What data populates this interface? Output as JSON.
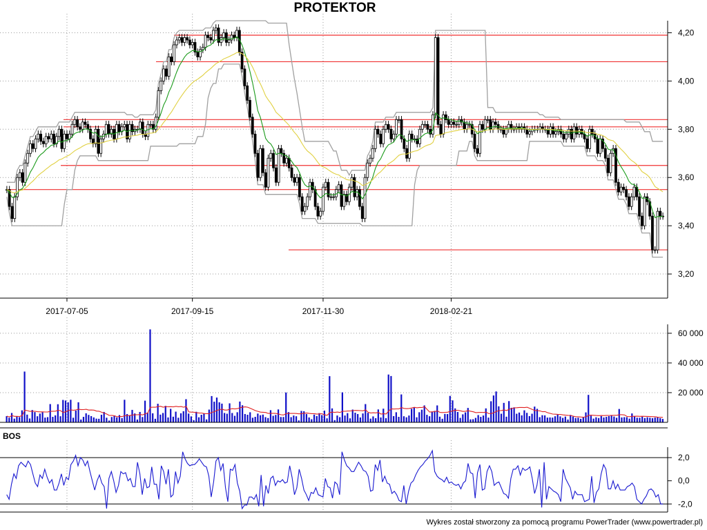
{
  "title": "PROTEKTOR",
  "footer": "Wykres został stworzony za pomocą programu PowerTrader (www.powertrader.pl)",
  "chart_data": [
    {
      "type": "candlestick",
      "name": "price",
      "x_ticks": [
        "2017-07-05",
        "2017-09-15",
        "2017-11-30",
        "2018-02-21"
      ],
      "y_ticks": [
        "4,20",
        "4,00",
        "3,80",
        "3,60",
        "3,40",
        "3,20"
      ],
      "ylim": [
        3.1,
        4.25
      ],
      "grid": true,
      "horizontal_levels": [
        4.19,
        4.08,
        3.84,
        3.81,
        3.65,
        3.55,
        3.3
      ],
      "close": [
        3.55,
        3.48,
        3.43,
        3.52,
        3.6,
        3.62,
        3.58,
        3.66,
        3.7,
        3.74,
        3.72,
        3.76,
        3.78,
        3.75,
        3.74,
        3.77,
        3.76,
        3.78,
        3.74,
        3.77,
        3.8,
        3.72,
        3.78,
        3.76,
        3.78,
        3.82,
        3.84,
        3.81,
        3.8,
        3.83,
        3.82,
        3.8,
        3.76,
        3.74,
        3.8,
        3.7,
        3.76,
        3.78,
        3.82,
        3.78,
        3.8,
        3.76,
        3.82,
        3.79,
        3.81,
        3.82,
        3.76,
        3.82,
        3.79,
        3.8,
        3.8,
        3.83,
        3.78,
        3.77,
        3.82,
        3.82,
        3.8,
        3.85,
        3.96,
        4.0,
        4.05,
        4.02,
        4.1,
        4.08,
        4.15,
        4.17,
        4.18,
        4.16,
        4.18,
        4.17,
        4.15,
        4.16,
        4.12,
        4.1,
        4.13,
        4.14,
        4.19,
        4.18,
        4.17,
        4.21,
        4.22,
        4.16,
        4.18,
        4.2,
        4.16,
        4.17,
        4.19,
        4.18,
        4.21,
        4.12,
        4.05,
        3.98,
        3.92,
        3.85,
        3.78,
        3.7,
        3.6,
        3.72,
        3.62,
        3.56,
        3.68,
        3.7,
        3.64,
        3.58,
        3.72,
        3.7,
        3.66,
        3.68,
        3.64,
        3.6,
        3.58,
        3.6,
        3.52,
        3.46,
        3.48,
        3.52,
        3.58,
        3.55,
        3.48,
        3.44,
        3.46,
        3.56,
        3.58,
        3.52,
        3.52,
        3.52,
        3.55,
        3.57,
        3.48,
        3.53,
        3.5,
        3.56,
        3.6,
        3.52,
        3.55,
        3.48,
        3.43,
        3.6,
        3.66,
        3.68,
        3.72,
        3.8,
        3.78,
        3.74,
        3.8,
        3.82,
        3.8,
        3.76,
        3.78,
        3.84,
        3.84,
        3.76,
        3.72,
        3.68,
        3.78,
        3.76,
        3.76,
        3.74,
        3.8,
        3.82,
        3.82,
        3.8,
        3.78,
        3.86,
        4.18,
        3.82,
        3.78,
        3.86,
        3.84,
        3.82,
        3.83,
        3.82,
        3.82,
        3.84,
        3.83,
        3.8,
        3.82,
        3.82,
        3.78,
        3.72,
        3.7,
        3.82,
        3.8,
        3.84,
        3.84,
        3.8,
        3.83,
        3.82,
        3.8,
        3.8,
        3.78,
        3.8,
        3.82,
        3.8,
        3.8,
        3.81,
        3.8,
        3.81,
        3.8,
        3.78,
        3.79,
        3.8,
        3.8,
        3.8,
        3.81,
        3.8,
        3.8,
        3.78,
        3.81,
        3.78,
        3.79,
        3.8,
        3.78,
        3.76,
        3.78,
        3.8,
        3.76,
        3.81,
        3.78,
        3.8,
        3.78,
        3.76,
        3.72,
        3.8,
        3.78,
        3.76,
        3.7,
        3.76,
        3.72,
        3.68,
        3.62,
        3.7,
        3.72,
        3.58,
        3.54,
        3.56,
        3.55,
        3.52,
        3.48,
        3.52,
        3.56,
        3.52,
        3.44,
        3.4,
        3.52,
        3.5,
        3.44,
        3.3,
        3.3,
        3.46,
        3.44,
        3.44
      ]
    },
    {
      "type": "bar",
      "name": "volume",
      "y_ticks": [
        "60 000",
        "40 000",
        "20 000"
      ],
      "ylim": [
        0,
        66000
      ],
      "values": [
        4200,
        3100,
        6300,
        2500,
        4100,
        3500,
        8100,
        34200,
        5200,
        2600,
        8300,
        6900,
        4100,
        5900,
        6800,
        3200,
        3500,
        12300,
        3700,
        4700,
        12200,
        4100,
        15100,
        14700,
        13500,
        15200,
        3100,
        7900,
        13500,
        1900,
        3700,
        6100,
        5000,
        4200,
        3300,
        2500,
        2400,
        5100,
        7000,
        3100,
        1200,
        3600,
        4200,
        3300,
        4900,
        2900,
        15200,
        5600,
        4600,
        8400,
        6000,
        1900,
        7000,
        3600,
        14600,
        6600,
        62600,
        6100,
        2400,
        12500,
        5200,
        6300,
        11100,
        3300,
        9100,
        3800,
        7200,
        3100,
        6100,
        7500,
        15600,
        5900,
        4000,
        1500,
        7100,
        3400,
        5100,
        6100,
        2000,
        8600,
        17700,
        13900,
        16700,
        13500,
        12600,
        6300,
        5800,
        12800,
        6300,
        4400,
        6800,
        14000,
        11500,
        5600,
        5100,
        6800,
        3100,
        3700,
        5900,
        4800,
        5200,
        3500,
        2900,
        8200,
        4400,
        5000,
        8700,
        3600,
        3600,
        20100,
        6900,
        3500,
        4600,
        4100,
        1300,
        7700,
        7500,
        5600,
        3300,
        2100,
        5200,
        4200,
        6200,
        4900,
        7900,
        2700,
        31100,
        9400,
        1500,
        4600,
        3500,
        20200,
        4600,
        6200,
        2700,
        8600,
        6500,
        5600,
        3300,
        6000,
        12300,
        6400,
        2500,
        4000,
        2800,
        8700,
        3300,
        9200,
        2800,
        32200,
        31200,
        4200,
        6800,
        3700,
        18800,
        4100,
        3400,
        4600,
        9100,
        10100,
        3400,
        6800,
        8500,
        11400,
        5100,
        4100,
        7100,
        7700,
        11400,
        3800,
        2400,
        5700,
        5600,
        17800,
        14800,
        9400,
        7000,
        3000,
        5400,
        6700,
        9700,
        2000,
        2100,
        3000,
        4900,
        3700,
        4600,
        9400,
        3200,
        14200,
        18100,
        20800,
        10800,
        5800,
        13100,
        3800,
        14300,
        9800,
        10100,
        5800,
        6600,
        4700,
        8100,
        6400,
        4200,
        5800,
        10600,
        9100,
        3500,
        4800,
        4700,
        3200,
        3300,
        3200,
        4100,
        5200,
        4000,
        3000,
        3900,
        1900,
        5000,
        3900,
        2900,
        3100,
        2400,
        3300,
        6700,
        18500,
        4500,
        2500,
        3400,
        2900,
        4200,
        3300,
        3700,
        4200,
        4500,
        3900,
        3100,
        9000,
        3300,
        3500,
        3500,
        2500,
        6000,
        4100,
        3100,
        3100,
        3800,
        2900,
        3400,
        3100,
        2800,
        3200,
        3400,
        2800,
        2300
      ]
    },
    {
      "type": "line",
      "name": "BOS",
      "title": "BOS",
      "y_ticks": [
        "2,0",
        "0,0",
        "-2,0"
      ],
      "ylim": [
        -2.7,
        2.9
      ],
      "levels": [
        2.0,
        -2.0
      ],
      "values": [
        -1.2,
        -1.6,
        -0.3,
        0.6,
        0.2,
        1.3,
        1.6,
        1.4,
        1.2,
        1.7,
        1.4,
        0.6,
        -0.2,
        -0.5,
        0.5,
        0.2,
        1.0,
        0.3,
        -0.2,
        0.1,
        -0.8,
        -0.8,
        -0.2,
        0.6,
        -0.4,
        0.3,
        0.1,
        1.4,
        1.7,
        2.2,
        1.3,
        2.0,
        1.8,
        1.3,
        1.7,
        0.8,
        0.0,
        -0.8,
        0.0,
        0.5,
        -0.2,
        -0.5,
        -2.4,
        0.2,
        0.8,
        0.0,
        -1.0,
        -0.4,
        0.8,
        0.6,
        0.7,
        0.0,
        0.2,
        -0.5,
        -0.5,
        1.6,
        0.6,
        -1.2,
        0.2,
        -0.6,
        -0.5,
        1.2,
        -0.3,
        -0.3,
        -1.6,
        1.3,
        0.8,
        -0.3,
        1.0,
        -1.4,
        -1.2,
        0.8,
        -0.2,
        0.4,
        2.5,
        1.9,
        1.5,
        1.3,
        1.4,
        1.4,
        1.6,
        1.9,
        1.6,
        1.3,
        1.2,
        0.4,
        -1.4,
        -0.1,
        1.7,
        2.0,
        0.9,
        1.5,
        -0.6,
        -1.8,
        1.0,
        0.9,
        1.4,
        -0.2,
        -0.9,
        -2.4,
        -2.1,
        -2.1,
        -1.4,
        -1.4,
        -1.6,
        -1.2,
        -2.2,
        0.5,
        -2.2,
        -0.4,
        -1.1,
        0.2,
        0.4,
        -0.4,
        0.0,
        -0.1,
        0.1,
        -0.2,
        -0.1,
        1.3,
        0.3,
        -1.2,
        -0.6,
        1.0,
        0.2,
        -0.8,
        -1.2,
        -1.7,
        -1.0,
        -1.1,
        -0.6,
        -1.2,
        -1.3,
        -1.4,
        0.2,
        -0.5,
        -0.6,
        -1.5,
        -0.1,
        -0.3,
        -1.2,
        2.5,
        1.8,
        1.3,
        1.1,
        0.8,
        0.8,
        1.2,
        1.6,
        1.3,
        0.9,
        0.8,
        0.4,
        -0.9,
        -0.8,
        1.4,
        0.9,
        1.8,
        -0.1,
        0.4,
        -0.2,
        -0.3,
        -1.1,
        -0.9,
        -1.2,
        -1.7,
        -1.8,
        -0.4,
        -2.0,
        -0.9,
        -0.2,
        0.0,
        0.5,
        0.9,
        1.2,
        1.4,
        1.7,
        1.9,
        2.2,
        2.6,
        0.8,
        0.4,
        0.2,
        0.1,
        -0.1,
        0.3,
        -0.2,
        -0.1,
        -0.3,
        -0.4,
        -0.3,
        -0.7,
        -0.2,
        0.0,
        1.5,
        0.7,
        0.6,
        -1.5,
        0.7,
        1.4,
        -0.8,
        -0.7,
        0.8,
        1.3,
        0.8,
        -0.4,
        -0.2,
        -0.1,
        -0.6,
        -1.1,
        -1.2,
        -1.5,
        0.2,
        1.0,
        1.0,
        1.3,
        0.5,
        1.1,
        0.9,
        1.0,
        1.2,
        0.2,
        -1.1,
        -0.4,
        1.0,
        -2.3,
        1.6,
        -1.6,
        -0.5,
        -0.7,
        -0.9,
        -1.0,
        -1.2,
        -1.8,
        1.0,
        0.2,
        -0.2,
        -0.6,
        -1.6,
        -0.9,
        -1.2,
        -1.2,
        -1.2,
        -1.8,
        -1.7,
        -1.6,
        0.4,
        -1.9,
        -1.0,
        -0.7,
        0.6,
        1.4,
        1.0,
        -0.7,
        -0.7,
        0.0,
        -0.7,
        -0.3,
        -0.8,
        -0.8,
        -0.8,
        -0.5,
        -0.4,
        -0.2,
        -0.5,
        -1.6,
        -1.8,
        -2.0,
        -1.6,
        -1.3,
        -0.8,
        -0.7,
        -0.9,
        -1.4,
        -1.2,
        -2.0,
        -2.0
      ]
    }
  ]
}
